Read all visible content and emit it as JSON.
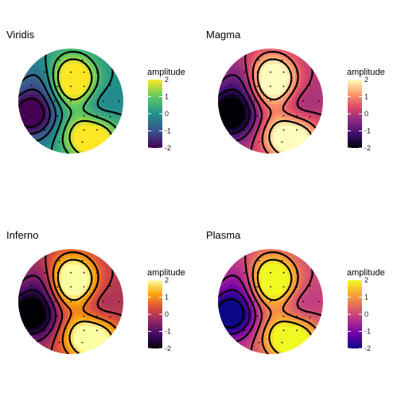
{
  "chart_data": [
    {
      "type": "heatmap",
      "title": "Viridis",
      "legend": {
        "title": "amplitude",
        "ticks": [
          2,
          1,
          0,
          -1,
          -2
        ],
        "range": [
          -2,
          2
        ],
        "placement": "right"
      },
      "palette": [
        "#440154",
        "#3b528b",
        "#21918c",
        "#5ec962",
        "#fde725"
      ],
      "blobs": [
        {
          "x": 0.08,
          "y": 0.35,
          "amplitude": 2.1
        },
        {
          "x": 0.0,
          "y": 0.55,
          "amplitude": 1.2
        },
        {
          "x": -0.8,
          "y": -0.25,
          "amplitude": -2.6
        },
        {
          "x": -0.55,
          "y": 0.35,
          "amplitude": -0.8
        },
        {
          "x": 0.15,
          "y": -0.62,
          "amplitude": 1.5
        },
        {
          "x": 0.52,
          "y": -0.78,
          "amplitude": 2.2
        },
        {
          "x": 0.42,
          "y": -0.05,
          "amplitude": -0.6
        },
        {
          "x": -0.35,
          "y": -0.3,
          "amplitude": -0.5
        },
        {
          "x": 0.0,
          "y": 0.0,
          "amplitude": 0.4
        }
      ]
    },
    {
      "type": "heatmap",
      "title": "Magma",
      "legend": {
        "title": "amplitude",
        "ticks": [
          2,
          1,
          0,
          -1,
          -2
        ],
        "range": [
          -2,
          2
        ],
        "placement": "right"
      },
      "palette": [
        "#000004",
        "#3b0f70",
        "#8c2981",
        "#de4968",
        "#fe9f6d",
        "#fcfdbf"
      ]
    },
    {
      "type": "heatmap",
      "title": "Inferno",
      "legend": {
        "title": "amplitude",
        "ticks": [
          2,
          1,
          0,
          -1,
          -2
        ],
        "range": [
          -2,
          2
        ],
        "placement": "right"
      },
      "palette": [
        "#000004",
        "#420a68",
        "#932667",
        "#dd513a",
        "#fca50a",
        "#fcffa4"
      ]
    },
    {
      "type": "heatmap",
      "title": "Plasma",
      "legend": {
        "title": "amplitude",
        "ticks": [
          2,
          1,
          0,
          -1,
          -2
        ],
        "range": [
          -2,
          2
        ],
        "placement": "right"
      },
      "palette": [
        "#0d0887",
        "#6a00a8",
        "#b12a90",
        "#e16462",
        "#fca636",
        "#f0f921"
      ]
    }
  ]
}
